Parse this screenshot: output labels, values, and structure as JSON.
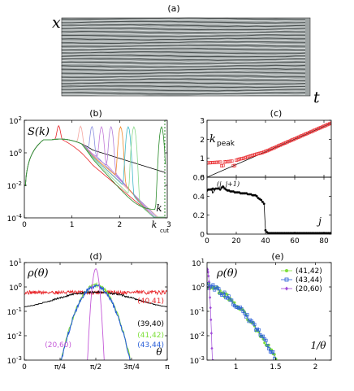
{
  "panel_labels": {
    "a": "(a)",
    "b": "(b)",
    "c": "(c)",
    "d": "(d)",
    "e": "(e)"
  },
  "image_axes": {
    "x": "x",
    "t": "t"
  },
  "chart_data": [
    {
      "id": "b",
      "type": "line",
      "ylabel": "S(k)",
      "xlabel": "k",
      "xlim": [
        0,
        3
      ],
      "ylim": [
        0.0001,
        100
      ],
      "yscale": "log",
      "xticks": [
        "0",
        "1",
        "2"
      ],
      "kcut_label": "k",
      "kcut_sub": "cut",
      "kcut_value": 3,
      "kcut_tick": "3",
      "yticks": [
        {
          "base": "10",
          "exp": "2",
          "v": 100
        },
        {
          "base": "10",
          "exp": "0",
          "v": 1
        },
        {
          "base": "10",
          "exp": "-2",
          "v": 0.01
        },
        {
          "base": "10",
          "exp": "-4",
          "v": 0.0001
        }
      ],
      "series": [
        {
          "color": "#000000",
          "peak_k": 0.75
        },
        {
          "color": "#e8262a",
          "peak_k": 0.72
        },
        {
          "color": "#f4a6a0",
          "peak_k": 1.18
        },
        {
          "color": "#8a8fe0",
          "peak_k": 1.42
        },
        {
          "color": "#c37ad8",
          "peak_k": 1.62
        },
        {
          "color": "#b07bd6",
          "peak_k": 1.82
        },
        {
          "color": "#f08a2a",
          "peak_k": 2.02
        },
        {
          "color": "#3fb8c8",
          "peak_k": 2.18
        },
        {
          "color": "#8bd98b",
          "peak_k": 2.3
        },
        {
          "color": "#2a8a2a",
          "peak_k": 2.88
        }
      ]
    },
    {
      "id": "c_top",
      "type": "scatter",
      "ylabel": "k",
      "ylabel_sub": "peak",
      "xlim": [
        0,
        85
      ],
      "ylim": [
        0,
        3
      ],
      "yticks": [
        "0",
        "1",
        "2",
        "3"
      ],
      "x": [
        0,
        1,
        2,
        3,
        4,
        5,
        6,
        7,
        8,
        9,
        10,
        11,
        12,
        13,
        14,
        15,
        16,
        17,
        18,
        19,
        20,
        21,
        22,
        23,
        24,
        25,
        26,
        27,
        28,
        29,
        30,
        31,
        32,
        33,
        34,
        35,
        36,
        37,
        38,
        39,
        40,
        41,
        42,
        43,
        44,
        45,
        46,
        47,
        48,
        49,
        50,
        51,
        52,
        53,
        54,
        55,
        56,
        57,
        58,
        59,
        60,
        61,
        62,
        63,
        64,
        65,
        66,
        67,
        68,
        69,
        70,
        71,
        72,
        73,
        74,
        75,
        76,
        77,
        78,
        79,
        80,
        81,
        82,
        83,
        84,
        85
      ],
      "y": [
        0.75,
        0.76,
        0.76,
        0.77,
        0.77,
        0.78,
        0.78,
        0.79,
        0.79,
        0.8,
        0.6,
        0.62,
        0.8,
        0.82,
        0.82,
        0.83,
        0.84,
        0.85,
        0.6,
        0.62,
        0.9,
        0.92,
        0.95,
        0.97,
        0.98,
        1.0,
        1.02,
        1.05,
        1.07,
        1.1,
        1.12,
        1.15,
        1.17,
        1.2,
        1.22,
        1.24,
        1.26,
        1.28,
        1.3,
        1.33,
        1.36,
        1.39,
        1.42,
        1.45,
        1.49,
        1.52,
        1.55,
        1.59,
        1.62,
        1.66,
        1.69,
        1.72,
        1.76,
        1.79,
        1.82,
        1.86,
        1.89,
        1.92,
        1.96,
        1.99,
        2.02,
        2.06,
        2.09,
        2.12,
        2.16,
        2.19,
        2.22,
        2.26,
        2.29,
        2.32,
        2.36,
        2.39,
        2.42,
        2.46,
        2.49,
        2.52,
        2.56,
        2.59,
        2.62,
        2.66,
        2.69,
        2.72,
        2.76,
        2.79,
        2.82,
        2.85
      ],
      "fit_line": {
        "x": [
          0,
          85
        ],
        "y": [
          0,
          2.85
        ]
      }
    },
    {
      "id": "c_bottom",
      "type": "line",
      "ylabel": "v",
      "ylabel_sup": "(j, j+1)",
      "xlabel": "j",
      "xlim": [
        0,
        85
      ],
      "ylim": [
        0,
        0.6
      ],
      "xticks": [
        "0",
        "20",
        "40",
        "60",
        "80"
      ],
      "yticks": [
        "0",
        "0.2",
        "0.4",
        "0.6"
      ],
      "x": [
        0,
        1,
        2,
        3,
        4,
        5,
        6,
        7,
        8,
        9,
        10,
        11,
        12,
        13,
        14,
        15,
        16,
        17,
        18,
        19,
        20,
        21,
        22,
        23,
        24,
        25,
        26,
        27,
        28,
        29,
        30,
        31,
        32,
        33,
        34,
        35,
        36,
        37,
        38,
        39,
        40,
        41,
        42,
        43,
        44,
        45,
        46,
        47,
        48,
        49,
        50,
        51,
        52,
        53,
        54,
        55,
        56,
        57,
        58,
        59,
        60,
        61,
        62,
        63,
        64,
        65,
        66,
        67,
        68,
        69,
        70,
        71,
        72,
        73,
        74,
        75,
        76,
        77,
        78,
        79,
        80,
        81,
        82,
        83,
        84,
        85
      ],
      "y": [
        0.46,
        0.47,
        0.47,
        0.47,
        0.48,
        0.47,
        0.48,
        0.48,
        0.48,
        0.47,
        0.49,
        0.5,
        0.48,
        0.47,
        0.46,
        0.46,
        0.45,
        0.45,
        0.45,
        0.44,
        0.44,
        0.44,
        0.44,
        0.43,
        0.43,
        0.43,
        0.43,
        0.43,
        0.42,
        0.42,
        0.42,
        0.41,
        0.41,
        0.41,
        0.4,
        0.38,
        0.37,
        0.36,
        0.34,
        0.32,
        0.04,
        0.02,
        0.01,
        0.01,
        0.01,
        0.01,
        0.01,
        0.01,
        0.01,
        0.01,
        0.01,
        0.01,
        0.01,
        0.01,
        0.01,
        0.01,
        0.01,
        0.01,
        0.01,
        0.01,
        0.01,
        0.01,
        0.01,
        0.01,
        0.01,
        0.01,
        0.01,
        0.01,
        0.01,
        0.01,
        0.01,
        0.01,
        0.01,
        0.01,
        0.01,
        0.01,
        0.01,
        0.01,
        0.01,
        0.01,
        0.01,
        0.01,
        0.01,
        0.01,
        0.01,
        0.01
      ]
    },
    {
      "id": "d",
      "type": "line",
      "ylabel": "ρ(θ)",
      "xlabel": "θ",
      "xlim": [
        0,
        3.1416
      ],
      "ylim": [
        0.001,
        10
      ],
      "yscale": "log",
      "xticks": [
        "0",
        "π/4",
        "π/2",
        "3π/4",
        "π"
      ],
      "yticks": [
        {
          "base": "10",
          "exp": "1",
          "v": 10
        },
        {
          "base": "10",
          "exp": "0",
          "v": 1
        },
        {
          "base": "10",
          "exp": "-1",
          "v": 0.1
        },
        {
          "base": "10",
          "exp": "-2",
          "v": 0.01
        },
        {
          "base": "10",
          "exp": "-3",
          "v": 0.001
        }
      ],
      "series": [
        {
          "name": "(40,41)",
          "color": "#e8262a",
          "shape": "flat",
          "level": 0.6
        },
        {
          "name": "(39,40)",
          "color": "#000000",
          "shape": "broad",
          "level": 0.62
        },
        {
          "name": "(41,42)",
          "color": "#7ee03a",
          "shape": "gauss",
          "width": 0.3,
          "peak": 1.2
        },
        {
          "name": "(43,44)",
          "color": "#2a5fd8",
          "shape": "gauss",
          "width": 0.3,
          "peak": 1.1
        },
        {
          "name": "(20,60)",
          "color": "#c45ad8",
          "shape": "gauss",
          "width": 0.065,
          "peak": 5.5
        }
      ]
    },
    {
      "id": "e",
      "type": "scatter",
      "ylabel": "ρ(θ)",
      "xlabel": "1/θ",
      "xlim": [
        0.636,
        2.2
      ],
      "ylim": [
        0.001,
        10
      ],
      "yscale": "log",
      "xticks": [
        "1",
        "1.5",
        "2"
      ],
      "yticks": [
        {
          "base": "10",
          "exp": "1",
          "v": 10
        },
        {
          "base": "10",
          "exp": "0",
          "v": 1
        },
        {
          "base": "10",
          "exp": "-1",
          "v": 0.1
        },
        {
          "base": "10",
          "exp": "-2",
          "v": 0.01
        },
        {
          "base": "10",
          "exp": "-3",
          "v": 0.001
        }
      ],
      "legend": "top-right",
      "series": [
        {
          "name": "(41,42)",
          "color": "#7ee03a",
          "marker": "circle"
        },
        {
          "name": "(43,44)",
          "color": "#2a5fd8",
          "marker": "square"
        },
        {
          "name": "(20,60)",
          "color": "#a04ad8",
          "marker": "diamond"
        }
      ]
    }
  ]
}
